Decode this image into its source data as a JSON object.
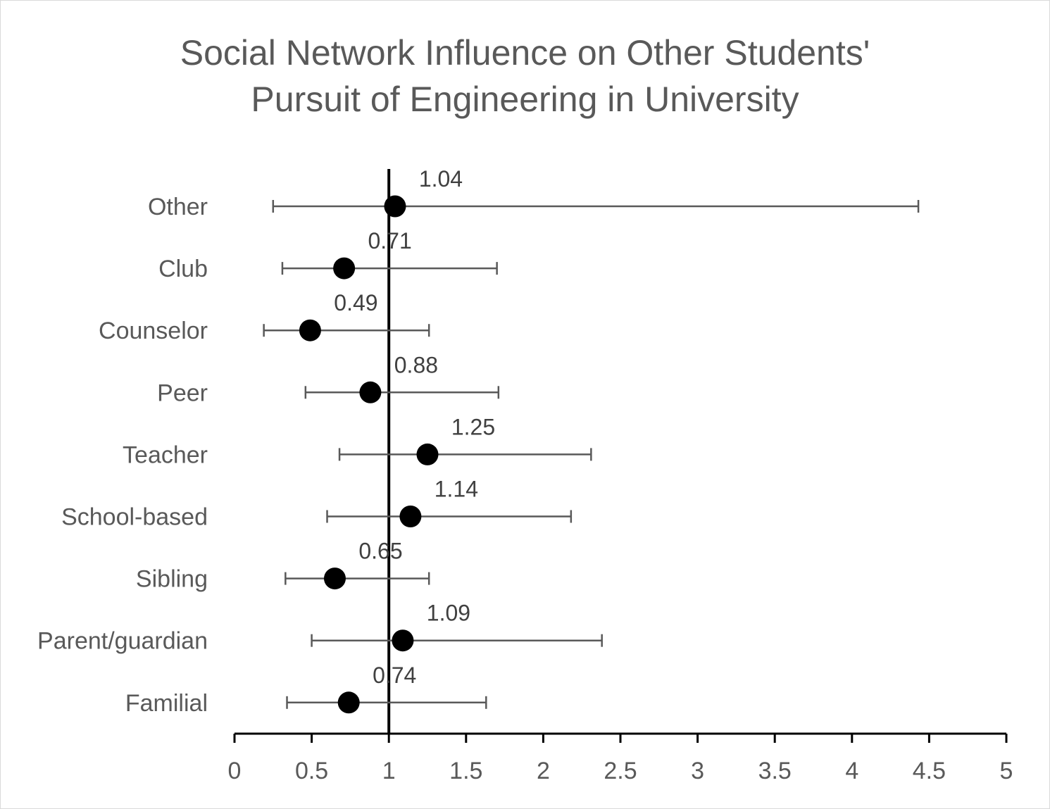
{
  "chart_data": {
    "type": "forest",
    "title": [
      "Social Network Influence on Other Students'",
      "Pursuit of Engineering in University"
    ],
    "categories": [
      "Other",
      "Club",
      "Counselor",
      "Peer",
      "Teacher",
      "School-based",
      "Sibling",
      "Parent/guardian",
      "Familial"
    ],
    "values": [
      1.04,
      0.71,
      0.49,
      0.88,
      1.25,
      1.14,
      0.65,
      1.09,
      0.74
    ],
    "data_labels": [
      "1.04",
      "0.71",
      "0.49",
      "0.88",
      "1.25",
      "1.14",
      "0.65",
      "1.09",
      "0.74"
    ],
    "ci_lower": [
      0.25,
      0.31,
      0.19,
      0.46,
      0.68,
      0.6,
      0.33,
      0.5,
      0.34
    ],
    "ci_upper": [
      4.43,
      1.7,
      1.26,
      1.71,
      2.31,
      2.18,
      1.26,
      2.38,
      1.63
    ],
    "reference_line": 1,
    "xlim": [
      0,
      5
    ],
    "xticks": [
      "0",
      "0.5",
      "1",
      "1.5",
      "2",
      "2.5",
      "3",
      "3.5",
      "4",
      "4.5",
      "5"
    ],
    "grid": false,
    "legend": "none",
    "colors": {
      "marker": "#000000",
      "errorbar": "#595959",
      "axis": "#000000",
      "text": "#595959"
    }
  }
}
